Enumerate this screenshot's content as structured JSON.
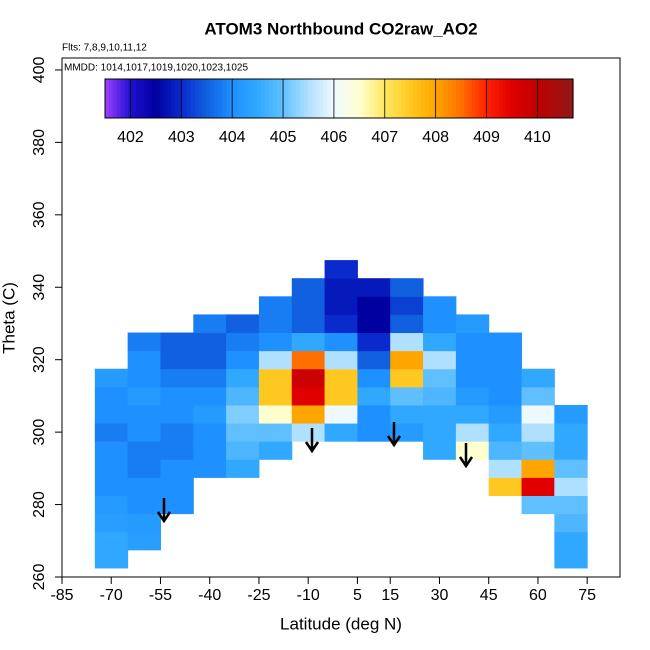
{
  "chart_data": {
    "type": "heatmap",
    "title": "ATOM3 Northbound CO2raw_AO2",
    "annotations": [
      "Flts: 7,8,9,10,11,12",
      "MMDD: 1014,1017,1019,1020,1023,1025"
    ],
    "x_label": "Latitude (deg N)",
    "y_label": "Theta (C)",
    "xlim": [
      -85,
      85
    ],
    "ylim": [
      260,
      403.3
    ],
    "xticks": [
      -85,
      -70,
      -55,
      -40,
      -25,
      -10,
      5,
      15,
      30,
      45,
      60,
      75
    ],
    "yticks": [
      260,
      280,
      300,
      320,
      340,
      360,
      380,
      400
    ],
    "x": [
      -70,
      -60,
      -50,
      -40,
      -30,
      -20,
      -10,
      0,
      10,
      20,
      30,
      40,
      50,
      60,
      70
    ],
    "y": [
      265,
      270,
      275,
      280,
      285,
      290,
      295,
      300,
      305,
      310,
      315,
      320,
      325,
      330,
      335,
      340,
      345
    ],
    "values": [
      [
        404.5,
        404.5,
        404.3,
        404.2,
        404,
        404,
        404,
        403.8,
        404,
        404,
        404.2,
        null,
        null,
        null,
        null,
        null,
        null
      ],
      [
        null,
        404.3,
        404.2,
        404,
        404,
        403.8,
        403.8,
        404,
        404,
        404.2,
        404,
        404,
        403.8,
        null,
        null,
        null,
        null
      ],
      [
        null,
        null,
        null,
        404,
        404,
        404,
        403.8,
        403.8,
        404,
        404,
        403.8,
        403.5,
        403.5,
        null,
        null,
        null,
        null
      ],
      [
        null,
        null,
        null,
        null,
        null,
        404,
        404,
        404,
        404.2,
        404,
        403.8,
        403.5,
        403.5,
        403.8,
        null,
        null,
        null
      ],
      [
        null,
        null,
        null,
        null,
        null,
        404.5,
        404.8,
        405,
        405.2,
        404.8,
        404.5,
        404,
        403.8,
        403.5,
        null,
        null,
        null
      ],
      [
        null,
        null,
        null,
        null,
        null,
        null,
        404.5,
        405,
        406.5,
        407.5,
        407.5,
        405.5,
        404,
        403.8,
        403.8,
        null,
        null
      ],
      [
        null,
        null,
        null,
        null,
        null,
        null,
        null,
        405.5,
        408,
        409.5,
        409.8,
        408.5,
        404.5,
        403.5,
        403.5,
        403.5,
        null
      ],
      [
        null,
        null,
        null,
        null,
        null,
        null,
        null,
        404.5,
        406,
        407.5,
        407.5,
        405.5,
        404,
        403,
        402.8,
        402.8,
        403
      ],
      [
        null,
        null,
        null,
        null,
        null,
        null,
        null,
        404,
        404,
        404.5,
        404,
        403.5,
        403,
        402.5,
        402.5,
        402.8,
        null
      ],
      [
        null,
        null,
        null,
        null,
        null,
        null,
        null,
        404.2,
        404.5,
        405,
        407.5,
        408,
        405.5,
        403.5,
        403.2,
        403.5,
        null
      ],
      [
        null,
        null,
        null,
        null,
        null,
        null,
        404.5,
        404.5,
        404.5,
        404.8,
        405,
        405.5,
        404.5,
        404,
        404,
        null,
        null
      ],
      [
        null,
        null,
        null,
        null,
        null,
        null,
        406.5,
        405.5,
        404.5,
        404.2,
        404,
        404,
        404,
        404.2,
        null,
        null,
        null
      ],
      [
        null,
        null,
        null,
        null,
        407.5,
        405.5,
        404.8,
        404.5,
        404.2,
        404,
        404,
        404,
        404,
        null,
        null,
        null,
        null
      ],
      [
        null,
        null,
        null,
        405,
        409.5,
        408,
        405,
        405.5,
        406,
        405,
        404.5,
        null,
        null,
        null,
        null,
        null,
        null
      ],
      [
        404.5,
        404.5,
        404.8,
        405,
        405.5,
        405,
        404.5,
        404.5,
        404.2,
        null,
        null,
        null,
        null,
        null,
        null,
        null,
        null
      ]
    ],
    "colorbar": {
      "range": [
        401.5,
        410.7
      ],
      "ticks": [
        402,
        403,
        404,
        405,
        406,
        407,
        408,
        409,
        410
      ],
      "stops": [
        [
          401.5,
          "#a040ff"
        ],
        [
          402,
          "#2010d0"
        ],
        [
          402.5,
          "#0000a0"
        ],
        [
          403,
          "#0a2acb"
        ],
        [
          403.5,
          "#1060e0"
        ],
        [
          404,
          "#1e90ff"
        ],
        [
          404.5,
          "#30a8ff"
        ],
        [
          405,
          "#60c0ff"
        ],
        [
          405.5,
          "#b0e0ff"
        ],
        [
          406,
          "#eef9ff"
        ],
        [
          406.5,
          "#ffffd0"
        ],
        [
          407,
          "#ffe860"
        ],
        [
          407.5,
          "#ffc820"
        ],
        [
          408,
          "#ffa500"
        ],
        [
          408.5,
          "#ff7000"
        ],
        [
          409,
          "#ff2000"
        ],
        [
          409.5,
          "#e00000"
        ],
        [
          410,
          "#c00000"
        ],
        [
          410.7,
          "#901818"
        ]
      ]
    }
  }
}
